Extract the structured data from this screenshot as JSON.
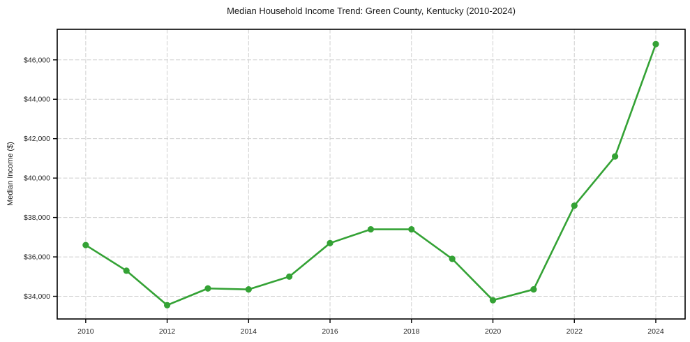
{
  "figure": {
    "background": "#ffffff"
  },
  "chart_data": {
    "type": "line",
    "title": "Median Household Income Trend: Green County, Kentucky (2010-2024)",
    "xlabel": "",
    "ylabel": "Median Income ($)",
    "x": [
      2010,
      2011,
      2012,
      2013,
      2014,
      2015,
      2016,
      2017,
      2018,
      2019,
      2020,
      2021,
      2022,
      2023,
      2024
    ],
    "series": [
      {
        "name": "Median Household Income",
        "values": [
          36600,
          35300,
          33550,
          34400,
          34350,
          35000,
          36700,
          37400,
          37400,
          35900,
          33800,
          34350,
          38600,
          41100,
          46800
        ],
        "color": "#34a235",
        "marker": "circle"
      }
    ],
    "x_ticks": [
      2010,
      2012,
      2014,
      2016,
      2018,
      2020,
      2022,
      2024
    ],
    "x_tick_labels": [
      "2010",
      "2012",
      "2014",
      "2016",
      "2018",
      "2020",
      "2022",
      "2024"
    ],
    "y_ticks": [
      34000,
      36000,
      38000,
      40000,
      42000,
      44000,
      46000
    ],
    "y_tick_labels": [
      "$34,000",
      "$36,000",
      "$38,000",
      "$40,000",
      "$42,000",
      "$44,000",
      "$46,000"
    ],
    "xlim": [
      2009.3,
      2024.72
    ],
    "ylim": [
      32850,
      47550
    ],
    "grid": true,
    "grid_color": "#cfcfcf",
    "grid_dash": "6 2.5",
    "axis_color": "#000000",
    "tick_label_color": "#262626",
    "legend_position": "none"
  }
}
